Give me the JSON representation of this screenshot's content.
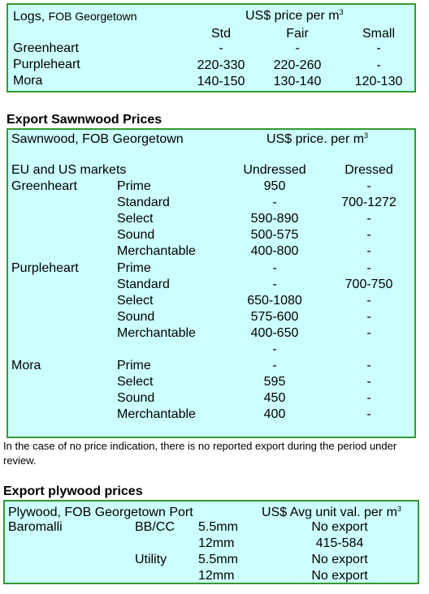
{
  "logs": {
    "title": "Logs,",
    "subtitle": "FOB Georgetown",
    "price_label": "US$ price per m",
    "price_sup": "3",
    "columns": [
      "Std",
      "Fair",
      "Small"
    ],
    "rows": [
      {
        "name": "Greenheart",
        "values": [
          "-",
          "-",
          "-"
        ]
      },
      {
        "name": "Purpleheart",
        "values": [
          "220-330",
          "220-260",
          "-"
        ]
      },
      {
        "name": "Mora",
        "values": [
          "140-150",
          "130-140",
          "120-130"
        ]
      }
    ]
  },
  "sawnwood": {
    "heading": "Export Sawnwood Prices",
    "title": "Sawnwood, FOB Georgetown",
    "price_label": "US$ price. per m",
    "price_sup": "3",
    "market_label": "EU and US markets",
    "col_undressed": "Undressed",
    "col_dressed": "Dressed",
    "rows": [
      {
        "species": "Greenheart",
        "grade": "Prime",
        "undressed": "950",
        "dressed": "-"
      },
      {
        "species": "",
        "grade": "Standard",
        "undressed": "-",
        "dressed": "700-1272"
      },
      {
        "species": "",
        "grade": "Select",
        "undressed": "590-890",
        "dressed": "-"
      },
      {
        "species": "",
        "grade": "Sound",
        "undressed": "500-575",
        "dressed": "-"
      },
      {
        "species": "",
        "grade": "Merchantable",
        "undressed": "400-800",
        "dressed": "-"
      },
      {
        "species": "Purpleheart",
        "grade": "Prime",
        "undressed": "-",
        "dressed": "-"
      },
      {
        "species": "",
        "grade": "Standard",
        "undressed": "-",
        "dressed": "700-750"
      },
      {
        "species": "",
        "grade": "Select",
        "undressed": "650-1080",
        "dressed": "-"
      },
      {
        "species": "",
        "grade": "Sound",
        "undressed": "575-600",
        "dressed": "-"
      },
      {
        "species": "",
        "grade": "Merchantable",
        "undressed": "400-650",
        "dressed": "-"
      },
      {
        "species": "",
        "grade": "",
        "undressed": "-",
        "dressed": ""
      },
      {
        "species": "Mora",
        "grade": "Prime",
        "undressed": "-",
        "dressed": "-"
      },
      {
        "species": "",
        "grade": "Select",
        "undressed": "595",
        "dressed": "-"
      },
      {
        "species": "",
        "grade": "Sound",
        "undressed": "450",
        "dressed": "-"
      },
      {
        "species": "",
        "grade": "Merchantable",
        "undressed": "400",
        "dressed": "-"
      }
    ],
    "note": "In the case of no price indication, there is no reported export during the period under review."
  },
  "plywood": {
    "heading": "Export plywood prices",
    "title": "Plywood, FOB Georgetown Port",
    "price_label": "US$ Avg unit val. per m",
    "price_sup": "3",
    "rows": [
      {
        "species": "Baromalli",
        "grade": "BB/CC",
        "size": "5.5mm",
        "value": "No export"
      },
      {
        "species": "",
        "grade": "",
        "size": "12mm",
        "value": "415-584"
      },
      {
        "species": "",
        "grade": "Utility",
        "size": "5.5mm",
        "value": "No export"
      },
      {
        "species": "",
        "grade": "",
        "size": "12mm",
        "value": "No export"
      }
    ]
  }
}
